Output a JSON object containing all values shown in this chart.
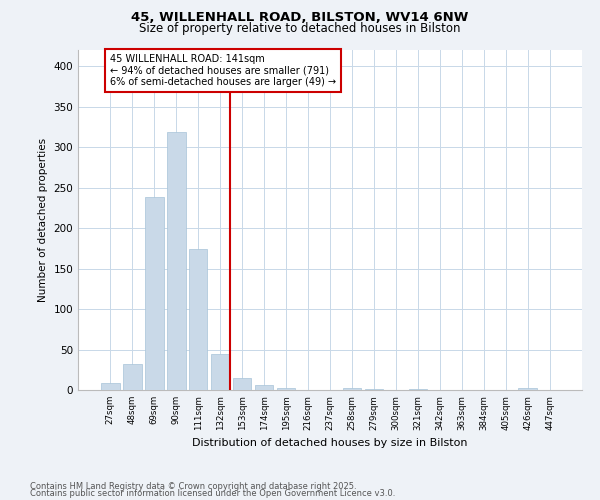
{
  "title1": "45, WILLENHALL ROAD, BILSTON, WV14 6NW",
  "title2": "Size of property relative to detached houses in Bilston",
  "xlabel": "Distribution of detached houses by size in Bilston",
  "ylabel": "Number of detached properties",
  "categories": [
    "27sqm",
    "48sqm",
    "69sqm",
    "90sqm",
    "111sqm",
    "132sqm",
    "153sqm",
    "174sqm",
    "195sqm",
    "216sqm",
    "237sqm",
    "258sqm",
    "279sqm",
    "300sqm",
    "321sqm",
    "342sqm",
    "363sqm",
    "384sqm",
    "405sqm",
    "426sqm",
    "447sqm"
  ],
  "values": [
    9,
    32,
    238,
    319,
    174,
    45,
    15,
    6,
    2,
    0,
    0,
    3,
    1,
    0,
    1,
    0,
    0,
    0,
    0,
    2,
    0
  ],
  "bar_color": "#c9d9e8",
  "bar_edge_color": "#a8c4d8",
  "annotation_text": "45 WILLENHALL ROAD: 141sqm\n← 94% of detached houses are smaller (791)\n6% of semi-detached houses are larger (49) →",
  "annotation_box_color": "#ffffff",
  "annotation_box_edge_color": "#cc0000",
  "vline_color": "#cc0000",
  "ylim": [
    0,
    420
  ],
  "yticks": [
    0,
    50,
    100,
    150,
    200,
    250,
    300,
    350,
    400
  ],
  "footer1": "Contains HM Land Registry data © Crown copyright and database right 2025.",
  "footer2": "Contains public sector information licensed under the Open Government Licence v3.0.",
  "bg_color": "#eef2f7",
  "plot_bg_color": "#ffffff",
  "grid_color": "#c8d8e8"
}
